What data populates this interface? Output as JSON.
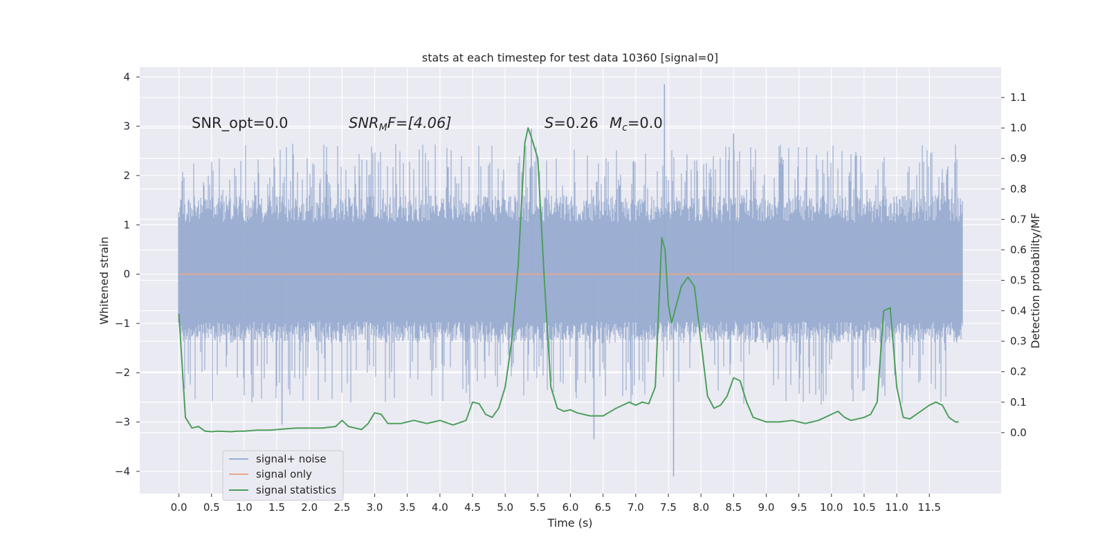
{
  "chart_data": {
    "type": "line",
    "title": "stats at each timestep for test data 10360 [signal=0]",
    "xlabel": "Time (s)",
    "ylabel": "Whitened strain",
    "y2label": "Detection probability/MF",
    "xlim": [
      -0.6,
      12.6
    ],
    "ylim": [
      -4.45,
      4.2
    ],
    "y2lim": [
      -0.2,
      1.2
    ],
    "xticks": [
      "0.0",
      "0.5",
      "1.0",
      "1.5",
      "2.0",
      "2.5",
      "3.0",
      "3.5",
      "4.0",
      "4.5",
      "5.0",
      "5.5",
      "6.0",
      "6.5",
      "7.0",
      "7.5",
      "8.0",
      "8.5",
      "9.0",
      "9.5",
      "10.0",
      "10.5",
      "11.0",
      "11.5"
    ],
    "yticks": [
      "4",
      "3",
      "2",
      "1",
      "0",
      "−1",
      "−2",
      "−3",
      "−4"
    ],
    "y2ticks": [
      "1.1",
      "1.0",
      "0.9",
      "0.8",
      "0.7",
      "0.6",
      "0.5",
      "0.4",
      "0.3",
      "0.2",
      "0.1",
      "0.0"
    ],
    "grid": true,
    "legend_position": "lower-left",
    "annotations": {
      "snr_opt": "SNR_opt=0.0",
      "snr_mf_main": "SNR",
      "snr_mf_sub": "M",
      "snr_mf_rest": "F=[4.06]",
      "s_main": "S",
      "s_rest": "=0.26",
      "mc_main": "M",
      "mc_sub": "c",
      "mc_rest": "=0.0"
    },
    "series": [
      {
        "name": "signal+ noise",
        "color": "#98acd0",
        "x_range": [
          0.0,
          12.0
        ],
        "envelope": {
          "typical_upper": 1.6,
          "typical_lower": -1.4,
          "peak_max": 3.85,
          "peak_min": -4.1
        },
        "axis": "left"
      },
      {
        "name": "signal only",
        "color": "#e8a58a",
        "x": [
          0.0,
          12.0
        ],
        "y": [
          0.0,
          0.0
        ],
        "axis": "left"
      },
      {
        "name": "signal statistics",
        "color": "#4c9e5a",
        "axis": "right",
        "x": [
          0.0,
          0.1,
          0.2,
          0.3,
          0.4,
          0.5,
          0.6,
          0.7,
          0.8,
          0.9,
          1.0,
          1.2,
          1.4,
          1.6,
          1.8,
          2.0,
          2.2,
          2.4,
          2.5,
          2.6,
          2.8,
          2.9,
          3.0,
          3.1,
          3.2,
          3.4,
          3.6,
          3.8,
          4.0,
          4.2,
          4.4,
          4.5,
          4.6,
          4.7,
          4.8,
          4.9,
          5.0,
          5.1,
          5.2,
          5.3,
          5.35,
          5.4,
          5.5,
          5.6,
          5.7,
          5.8,
          5.9,
          6.0,
          6.1,
          6.3,
          6.5,
          6.7,
          6.9,
          7.0,
          7.1,
          7.2,
          7.3,
          7.4,
          7.45,
          7.5,
          7.55,
          7.6,
          7.7,
          7.8,
          7.9,
          8.0,
          8.1,
          8.2,
          8.3,
          8.4,
          8.5,
          8.6,
          8.7,
          8.8,
          9.0,
          9.2,
          9.4,
          9.6,
          9.8,
          10.0,
          10.1,
          10.2,
          10.3,
          10.5,
          10.6,
          10.7,
          10.8,
          10.9,
          11.0,
          11.1,
          11.2,
          11.3,
          11.5,
          11.6,
          11.7,
          11.8,
          11.9,
          11.95
        ],
        "y": [
          0.39,
          0.05,
          0.015,
          0.02,
          0.005,
          0.003,
          0.005,
          0.004,
          0.003,
          0.005,
          0.005,
          0.008,
          0.008,
          0.012,
          0.015,
          0.015,
          0.015,
          0.02,
          0.04,
          0.02,
          0.01,
          0.03,
          0.065,
          0.06,
          0.03,
          0.03,
          0.04,
          0.03,
          0.04,
          0.025,
          0.04,
          0.1,
          0.095,
          0.06,
          0.05,
          0.08,
          0.15,
          0.3,
          0.55,
          0.95,
          1.0,
          0.97,
          0.9,
          0.5,
          0.15,
          0.08,
          0.07,
          0.075,
          0.065,
          0.055,
          0.055,
          0.08,
          0.1,
          0.09,
          0.1,
          0.095,
          0.15,
          0.64,
          0.6,
          0.42,
          0.36,
          0.4,
          0.48,
          0.51,
          0.48,
          0.3,
          0.12,
          0.08,
          0.09,
          0.12,
          0.18,
          0.17,
          0.1,
          0.05,
          0.035,
          0.035,
          0.04,
          0.03,
          0.04,
          0.06,
          0.07,
          0.05,
          0.04,
          0.05,
          0.06,
          0.1,
          0.4,
          0.41,
          0.15,
          0.05,
          0.045,
          0.06,
          0.09,
          0.1,
          0.09,
          0.05,
          0.035,
          0.035
        ]
      }
    ]
  }
}
